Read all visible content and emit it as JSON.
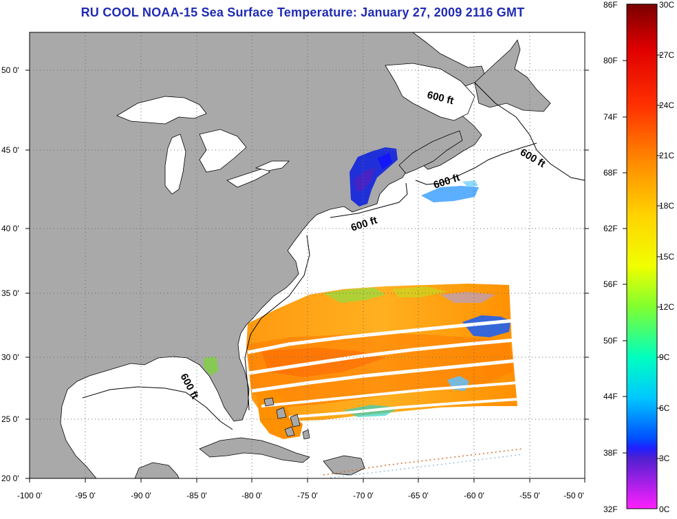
{
  "title": "RU COOL  NOAA-15  Sea Surface Temperature:  January 27, 2009 2116 GMT",
  "map": {
    "lon_ticks": [
      "-100 0'",
      "-95 0'",
      "-90 0'",
      "-85 0'",
      "-80 0'",
      "-75 0'",
      "-70 0'",
      "-65 0'",
      "-60 0'",
      "-55 0'",
      "-50 0'"
    ],
    "lat_ticks": [
      "50 0'",
      "45 0'",
      "40 0'",
      "35 0'",
      "30 0'",
      "25 0'",
      "20 0'"
    ],
    "lon_range": [
      -100,
      -50
    ],
    "lat_range": [
      20,
      52.5
    ],
    "grid": "dotted",
    "land_color": "#a9a9a9",
    "contour_labels": [
      "600 ft",
      "600 ft",
      "600 ft",
      "600 ft",
      "600 ft"
    ]
  },
  "colorbar": {
    "fahrenheit": [
      "86F",
      "80F",
      "74F",
      "68F",
      "62F",
      "56F",
      "50F",
      "44F",
      "38F",
      "32F"
    ],
    "celsius": [
      "30C",
      "27C",
      "24C",
      "21C",
      "18C",
      "15C",
      "12C",
      "9C",
      "6C",
      "3C",
      "0C"
    ],
    "colors": [
      "#8b0000",
      "#ff0000",
      "#ff8000",
      "#ffd000",
      "#ffff00",
      "#80ff40",
      "#00ffb0",
      "#00ffff",
      "#0060ff",
      "#0000ff",
      "#8000c0",
      "#ff00ff"
    ]
  }
}
